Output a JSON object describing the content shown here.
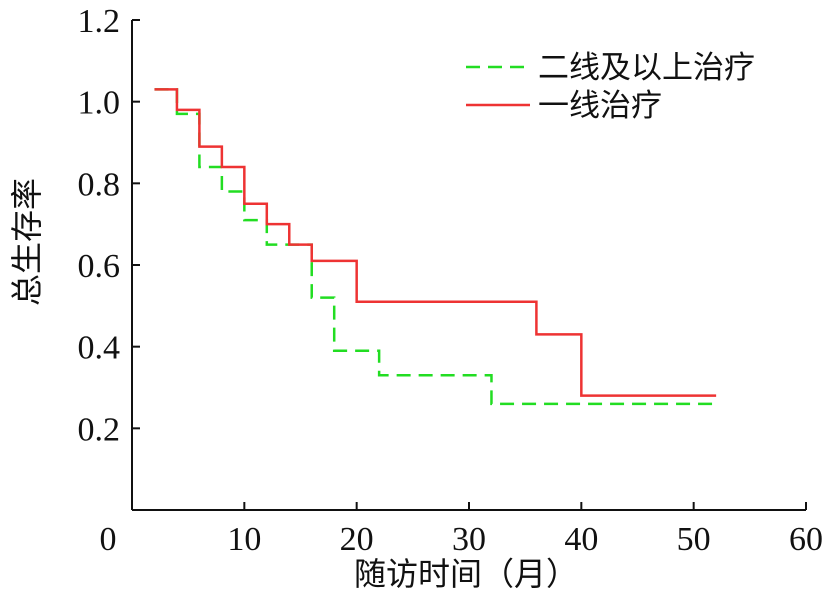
{
  "chart_data": {
    "type": "line",
    "step": true,
    "xlabel": "随访时间（月）",
    "ylabel": "总生存率",
    "xlim": [
      0,
      60
    ],
    "ylim": [
      0,
      1.2
    ],
    "xticks": [
      "0",
      "10",
      "20",
      "30",
      "40",
      "50",
      "60"
    ],
    "yticks": [
      "0.2",
      "0.4",
      "0.6",
      "0.8",
      "1.0",
      "1.2"
    ],
    "grid": false,
    "legend_position": "top-right",
    "series": [
      {
        "name": "二线及以上治疗",
        "color": "#22dd22",
        "dash": "dashed",
        "x": [
          2,
          4,
          6,
          8,
          10,
          12,
          16,
          18,
          22,
          32,
          52
        ],
        "y": [
          1.03,
          0.97,
          0.84,
          0.78,
          0.71,
          0.65,
          0.52,
          0.39,
          0.33,
          0.26,
          0.26
        ]
      },
      {
        "name": "一线治疗",
        "color": "#ee3333",
        "dash": "solid",
        "x": [
          2,
          4,
          6,
          8,
          10,
          12,
          14,
          16,
          20,
          36,
          40,
          52
        ],
        "y": [
          1.03,
          0.98,
          0.89,
          0.84,
          0.75,
          0.7,
          0.65,
          0.61,
          0.51,
          0.43,
          0.28,
          0.28
        ]
      }
    ]
  }
}
